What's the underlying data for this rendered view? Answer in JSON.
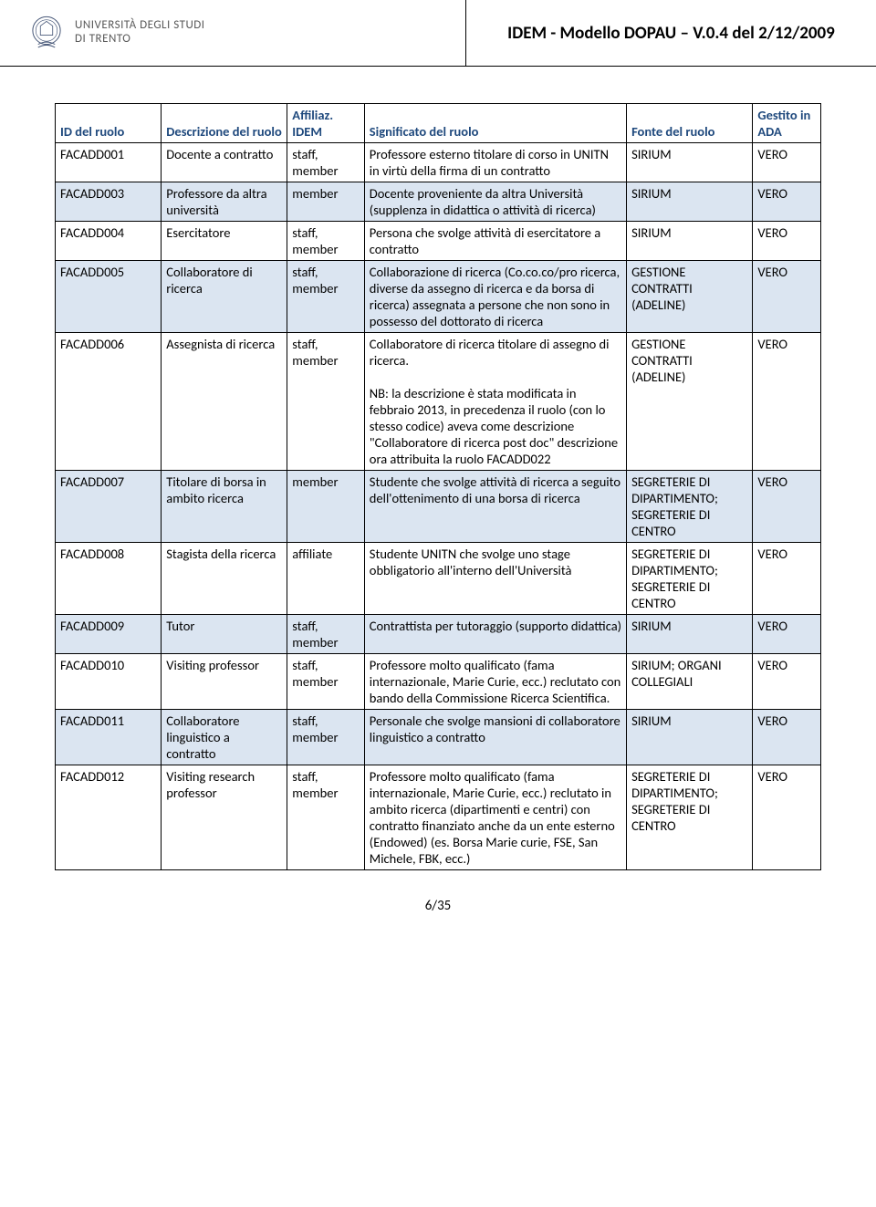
{
  "header": {
    "uni_line1": "UNIVERSITÀ DEGLI STUDI",
    "uni_line2": "DI TRENTO",
    "doc_title": "IDEM - Modello DOPAU – V.0.4 del 2/12/2009"
  },
  "table": {
    "headers": {
      "id": "ID del ruolo",
      "desc": "Descrizione del ruolo",
      "aff": "Affiliaz. IDEM",
      "sig": "Significato del ruolo",
      "fonte": "Fonte del ruolo",
      "gest": "Gestito in ADA"
    },
    "rows": [
      {
        "id": "FACADD001",
        "desc": "Docente a contratto",
        "aff": "staff, member",
        "sig": "Professore esterno titolare di corso in UNITN in virtù della firma di un contratto",
        "fonte": "SIRIUM",
        "gest": "VERO"
      },
      {
        "id": "FACADD003",
        "desc": "Professore da altra università",
        "aff": "member",
        "sig": "Docente proveniente da altra Università (supplenza in didattica o attività di ricerca)",
        "fonte": "SIRIUM",
        "gest": "VERO"
      },
      {
        "id": "FACADD004",
        "desc": "Esercitatore",
        "aff": "staff, member",
        "sig": "Persona che svolge attività di esercitatore a contratto",
        "fonte": "SIRIUM",
        "gest": "VERO"
      },
      {
        "id": "FACADD005",
        "desc": "Collaboratore di ricerca",
        "aff": "staff, member",
        "sig": "Collaborazione di ricerca (Co.co.co/pro ricerca, diverse da assegno di ricerca e da borsa di ricerca) assegnata a persone che non sono in possesso del dottorato di ricerca",
        "fonte": "GESTIONE CONTRATTI (ADELINE)",
        "gest": "VERO"
      },
      {
        "id": "FACADD006",
        "desc": "Assegnista di ricerca",
        "aff": "staff, member",
        "sig": "Collaboratore di ricerca titolare di assegno di ricerca.\n\nNB: la descrizione è stata modificata in febbraio 2013, in precedenza il ruolo (con lo stesso codice) aveva come descrizione \"Collaboratore di ricerca post doc\" descrizione ora attribuita la ruolo FACADD022",
        "fonte": "GESTIONE CONTRATTI (ADELINE)",
        "gest": "VERO"
      },
      {
        "id": "FACADD007",
        "desc": "Titolare di borsa in ambito ricerca",
        "aff": "member",
        "sig": "Studente che svolge attività di ricerca a seguito dell'ottenimento di una borsa di ricerca",
        "fonte": "SEGRETERIE DI DIPARTIMENTO; SEGRETERIE DI CENTRO",
        "gest": "VERO"
      },
      {
        "id": "FACADD008",
        "desc": "Stagista della ricerca",
        "aff": "affiliate",
        "sig": "Studente UNITN che svolge uno stage obbligatorio all'interno dell'Università",
        "fonte": "SEGRETERIE DI DIPARTIMENTO; SEGRETERIE DI CENTRO",
        "gest": "VERO"
      },
      {
        "id": "FACADD009",
        "desc": "Tutor",
        "aff": "staff, member",
        "sig": "Contrattista per tutoraggio (supporto didattica)",
        "fonte": "SIRIUM",
        "gest": "VERO"
      },
      {
        "id": "FACADD010",
        "desc": "Visiting professor",
        "aff": "staff, member",
        "sig": "Professore molto qualificato (fama internazionale, Marie Curie, ecc.) reclutato con bando della Commissione Ricerca Scientifica.",
        "fonte": "SIRIUM; ORGANI COLLEGIALI",
        "gest": "VERO"
      },
      {
        "id": "FACADD011",
        "desc": "Collaboratore linguistico a contratto",
        "aff": "staff, member",
        "sig": "Personale che svolge mansioni di collaboratore linguistico a contratto",
        "fonte": "SIRIUM",
        "gest": "VERO"
      },
      {
        "id": "FACADD012",
        "desc": "Visiting research professor",
        "aff": "staff, member",
        "sig": "Professore molto qualificato (fama internazionale, Marie Curie, ecc.) reclutato in ambito ricerca (dipartimenti e centri) con contratto finanziato anche da un ente esterno (Endowed) (es. Borsa Marie curie, FSE, San Michele, FBK, ecc.)",
        "fonte": "SEGRETERIE DI DIPARTIMENTO; SEGRETERIE DI CENTRO",
        "gest": "VERO"
      }
    ]
  },
  "pagenum": "6/35",
  "colors": {
    "header_text": "#1f497d",
    "alt_row_bg": "#dbe5f1",
    "border": "#000000"
  }
}
